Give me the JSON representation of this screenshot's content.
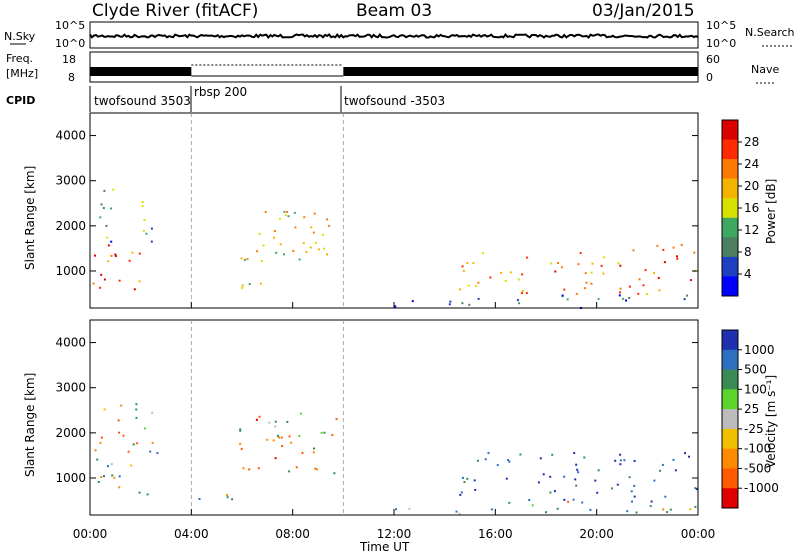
{
  "header": {
    "station": "Clyde River (fitACF)",
    "beam": "Beam 03",
    "date": "03/Jan/2015"
  },
  "top_strip": {
    "nsky_label": "N.Sky",
    "nsearch_label": "N.Search",
    "freq_label": "Freq.",
    "freq_unit": "[MHz]",
    "nave_label": "Nave",
    "cpid_label": "CPID",
    "noise_ticks_left": [
      "10^5",
      "10^0"
    ],
    "noise_ticks_right": [
      "10^5",
      "10^0"
    ],
    "freq_ticks": [
      "18",
      "8"
    ],
    "nave_ticks": [
      "60",
      "0"
    ],
    "cpid_segments": [
      {
        "label": "twofsound 3503",
        "start_hour": 0.0,
        "end_hour": 4.0
      },
      {
        "label": "rbsp 200",
        "start_hour": 4.0,
        "end_hour": 10.0
      },
      {
        "label": "twofsound -3503",
        "start_hour": 10.0,
        "end_hour": 24.0
      }
    ]
  },
  "chart_data": [
    {
      "type": "heatmap",
      "panel": "power",
      "ylabel": "Slant Range [km]",
      "xlabel": "",
      "xlim": [
        0,
        24
      ],
      "ylim": [
        180,
        4500
      ],
      "xticks": [
        "00:00",
        "04:00",
        "08:00",
        "12:00",
        "16:00",
        "20:00",
        "00:00"
      ],
      "yticks": [
        "1000",
        "2000",
        "3000",
        "4000"
      ],
      "colorbar": {
        "label": "Power [dB]",
        "ticks": [
          "28",
          "24",
          "20",
          "16",
          "12",
          "8",
          "4"
        ],
        "colors": [
          "#d90000",
          "#ff2a00",
          "#ff7a00",
          "#f3b400",
          "#d8e000",
          "#3fa860",
          "#4b7f60",
          "#1f3fc0",
          "#0000ff"
        ]
      },
      "scatter_regions": [
        {
          "t0": 0.1,
          "t1": 2.7,
          "r0": 600,
          "r1": 1700,
          "value_db": 24
        },
        {
          "t0": 0.3,
          "t1": 2.5,
          "r0": 1600,
          "r1": 2900,
          "value_db": 10
        },
        {
          "t0": 4.0,
          "t1": 6.8,
          "r0": 550,
          "r1": 800,
          "value_db": 14
        },
        {
          "t0": 5.8,
          "t1": 8.0,
          "r0": 1200,
          "r1": 2500,
          "value_db": 20
        },
        {
          "t0": 7.2,
          "t1": 9.8,
          "r0": 1100,
          "r1": 2500,
          "value_db": 18
        },
        {
          "t0": 14.2,
          "t1": 24.0,
          "r0": 500,
          "r1": 1600,
          "value_db": 22
        },
        {
          "t0": 12.0,
          "t1": 24.0,
          "r0": 200,
          "r1": 500,
          "value_db": 6
        }
      ]
    },
    {
      "type": "heatmap",
      "panel": "velocity",
      "ylabel": "Slant Range [km]",
      "xlabel": "Time UT",
      "xlim": [
        0,
        24
      ],
      "ylim": [
        180,
        4500
      ],
      "xticks": [
        "00:00",
        "04:00",
        "08:00",
        "12:00",
        "16:00",
        "20:00",
        "00:00"
      ],
      "yticks": [
        "1000",
        "2000",
        "3000",
        "4000"
      ],
      "colorbar": {
        "label": "Velocity [m s⁻¹]",
        "ticks": [
          "1000",
          "500",
          "100",
          "25",
          "-25",
          "-100",
          "-500",
          "-1000"
        ],
        "colors": [
          "#1f2fb0",
          "#2f6fc0",
          "#3a8a55",
          "#5cd42a",
          "#bcbcbc",
          "#f0c000",
          "#ff8a00",
          "#ff5a00",
          "#e00000"
        ]
      },
      "scatter_regions": [
        {
          "t0": 0.1,
          "t1": 2.7,
          "r0": 600,
          "r1": 1700,
          "value_ms": 300
        },
        {
          "t0": 0.3,
          "t1": 2.5,
          "r0": 1600,
          "r1": 2900,
          "value_ms": -200
        },
        {
          "t0": 4.0,
          "t1": 6.8,
          "r0": 550,
          "r1": 800,
          "value_ms": 150
        },
        {
          "t0": 5.8,
          "t1": 8.0,
          "r0": 1200,
          "r1": 2500,
          "value_ms": -300
        },
        {
          "t0": 7.2,
          "t1": 9.8,
          "r0": 1100,
          "r1": 2500,
          "value_ms": -250
        },
        {
          "t0": 14.2,
          "t1": 24.0,
          "r0": 500,
          "r1": 1600,
          "value_ms": 600
        },
        {
          "t0": 12.0,
          "t1": 24.0,
          "r0": 200,
          "r1": 500,
          "value_ms": 50
        }
      ]
    }
  ]
}
